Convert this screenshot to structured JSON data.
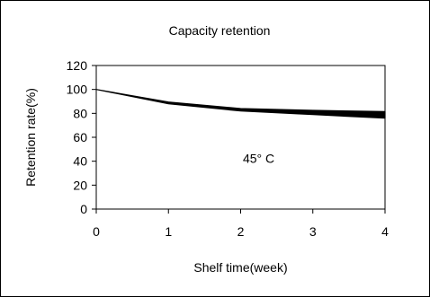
{
  "chart_data": {
    "type": "area",
    "title": "Capacity retention",
    "xlabel": "Shelf time(week)",
    "ylabel": "Retention rate(%)",
    "xlim": [
      0,
      4
    ],
    "ylim": [
      0,
      120
    ],
    "x_ticks": [
      0,
      1,
      2,
      3,
      4
    ],
    "y_ticks": [
      0,
      20,
      40,
      60,
      80,
      100,
      120
    ],
    "grid": false,
    "legend": "none",
    "annotation": "45° C",
    "series": [
      {
        "x": [
          0,
          1,
          2,
          3,
          4
        ],
        "upper": [
          100,
          89.5,
          84,
          82.5,
          81.5
        ],
        "lower": [
          100,
          88,
          82,
          79,
          76
        ]
      }
    ],
    "colors": {
      "band": "#000000",
      "axis": "#000000",
      "frame": "#000000"
    }
  }
}
